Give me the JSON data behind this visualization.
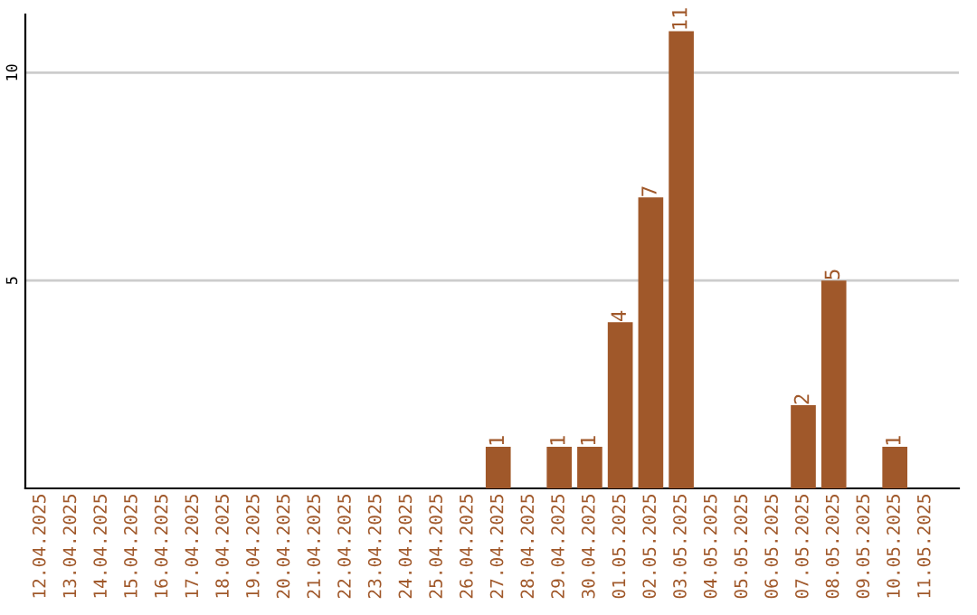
{
  "chart_data": {
    "type": "bar",
    "categories": [
      "12.04.2025",
      "13.04.2025",
      "14.04.2025",
      "15.04.2025",
      "16.04.2025",
      "17.04.2025",
      "18.04.2025",
      "19.04.2025",
      "20.04.2025",
      "21.04.2025",
      "22.04.2025",
      "23.04.2025",
      "24.04.2025",
      "25.04.2025",
      "26.04.2025",
      "27.04.2025",
      "28.04.2025",
      "29.04.2025",
      "30.04.2025",
      "01.05.2025",
      "02.05.2025",
      "03.05.2025",
      "04.05.2025",
      "05.05.2025",
      "06.05.2025",
      "07.05.2025",
      "08.05.2025",
      "09.05.2025",
      "10.05.2025",
      "11.05.2025"
    ],
    "values": [
      0,
      0,
      0,
      0,
      0,
      0,
      0,
      0,
      0,
      0,
      0,
      0,
      0,
      0,
      0,
      1,
      0,
      1,
      1,
      4,
      7,
      11,
      0,
      0,
      0,
      2,
      5,
      0,
      1,
      0
    ],
    "value_labels": [
      null,
      null,
      null,
      null,
      null,
      null,
      null,
      null,
      null,
      null,
      null,
      null,
      null,
      null,
      null,
      "1",
      null,
      "1",
      "1",
      "4",
      "7",
      "11",
      null,
      null,
      null,
      "2",
      "5",
      null,
      "1",
      null
    ],
    "color": "#a0582a",
    "ylim": [
      0,
      11.4
    ],
    "yticks": [
      5,
      10
    ],
    "grid": "y"
  }
}
